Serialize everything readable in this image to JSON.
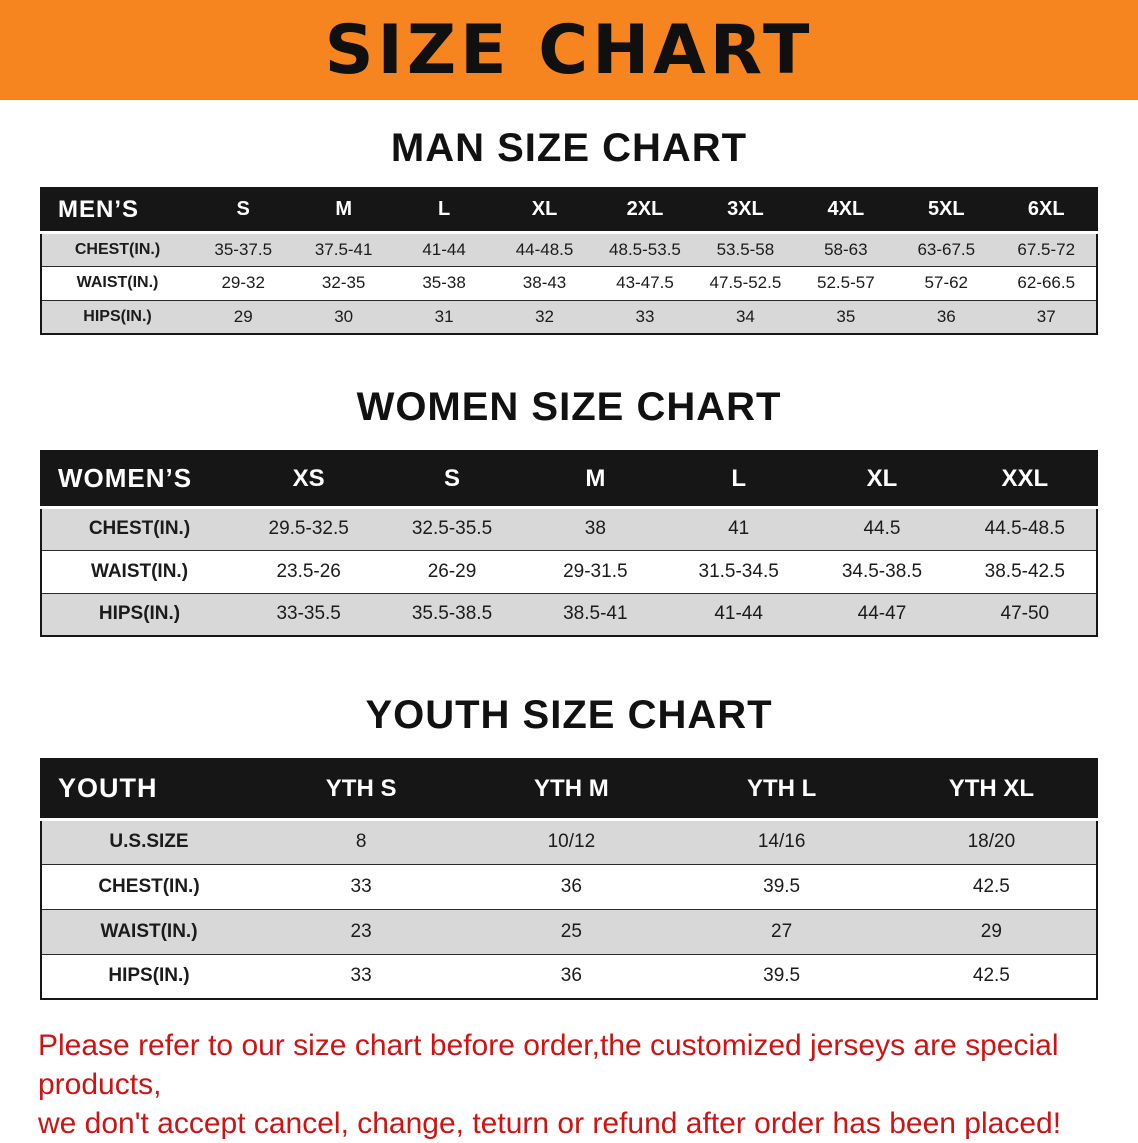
{
  "banner": {
    "title": "SIZE CHART",
    "bg_color": "#f6851f"
  },
  "sections": [
    {
      "title": "MAN SIZE CHART",
      "table": {
        "header_label": "MEN’S",
        "columns": [
          "S",
          "M",
          "L",
          "XL",
          "2XL",
          "3XL",
          "4XL",
          "5XL",
          "6XL"
        ],
        "rows": [
          {
            "label": "CHEST(IN.)",
            "values": [
              "35-37.5",
              "37.5-41",
              "41-44",
              "44-48.5",
              "48.5-53.5",
              "53.5-58",
              "58-63",
              "63-67.5",
              "67.5-72"
            ]
          },
          {
            "label": "WAIST(IN.)",
            "values": [
              "29-32",
              "32-35",
              "35-38",
              "38-43",
              "43-47.5",
              "47.5-52.5",
              "52.5-57",
              "57-62",
              "62-66.5"
            ]
          },
          {
            "label": "HIPS(IN.)",
            "values": [
              "29",
              "30",
              "31",
              "32",
              "33",
              "34",
              "35",
              "36",
              "37"
            ]
          }
        ]
      }
    },
    {
      "title": "WOMEN SIZE CHART",
      "table": {
        "header_label": "WOMEN’S",
        "columns": [
          "XS",
          "S",
          "M",
          "L",
          "XL",
          "XXL"
        ],
        "rows": [
          {
            "label": "CHEST(IN.)",
            "values": [
              "29.5-32.5",
              "32.5-35.5",
              "38",
              "41",
              "44.5",
              "44.5-48.5"
            ]
          },
          {
            "label": "WAIST(IN.)",
            "values": [
              "23.5-26",
              "26-29",
              "29-31.5",
              "31.5-34.5",
              "34.5-38.5",
              "38.5-42.5"
            ]
          },
          {
            "label": "HIPS(IN.)",
            "values": [
              "33-35.5",
              "35.5-38.5",
              "38.5-41",
              "41-44",
              "44-47",
              "47-50"
            ]
          }
        ]
      }
    },
    {
      "title": "YOUTH SIZE CHART",
      "table": {
        "header_label": "YOUTH",
        "columns": [
          "YTH S",
          "YTH M",
          "YTH L",
          "YTH XL"
        ],
        "rows": [
          {
            "label": "U.S.SIZE",
            "values": [
              "8",
              "10/12",
              "14/16",
              "18/20"
            ]
          },
          {
            "label": "CHEST(IN.)",
            "values": [
              "33",
              "36",
              "39.5",
              "42.5"
            ]
          },
          {
            "label": "WAIST(IN.)",
            "values": [
              "23",
              "25",
              "27",
              "29"
            ]
          },
          {
            "label": "HIPS(IN.)",
            "values": [
              "33",
              "36",
              "39.5",
              "42.5"
            ]
          }
        ]
      }
    }
  ],
  "footer": {
    "line1": "Please refer to our size chart before order,the customized jerseys are special products,",
    "line2": "we don't accept cancel, change, teturn or refund after order has been placed!",
    "text_color": "#d01212"
  }
}
